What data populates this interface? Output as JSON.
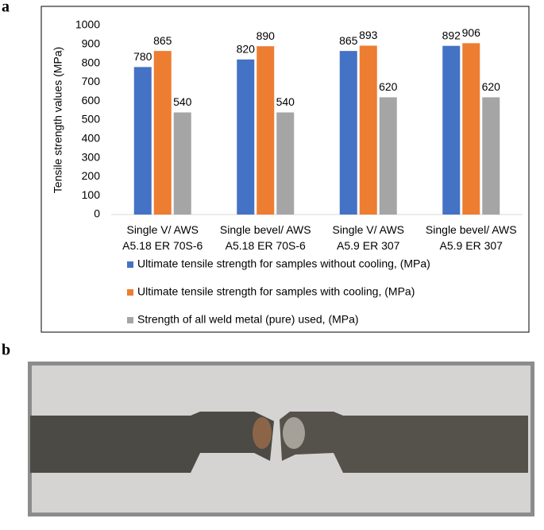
{
  "panel_labels": [
    "a",
    "b"
  ],
  "chart_data": {
    "type": "bar",
    "y_label": "Tensile strength values (MPa)",
    "categories": [
      "Single V/ AWS\nA5.18 ER 70S-6",
      "Single bevel/ AWS\nA5.18 ER 70S-6",
      "Single V/ AWS\nA5.9 ER 307",
      "Single bevel/ AWS\nA5.9 ER 307"
    ],
    "series": [
      {
        "name": "Ultimate tensile strength for samples without cooling, (MPa)",
        "color": "#4472c4",
        "values": [
          780,
          820,
          865,
          892
        ]
      },
      {
        "name": "Ultimate tensile strength for samples with cooling, (MPa)",
        "color": "#ed7d31",
        "values": [
          865,
          890,
          893,
          906
        ]
      },
      {
        "name": "Strength of all  weld metal (pure) used, (MPa)",
        "color": "#a5a5a5",
        "values": [
          540,
          540,
          620,
          620
        ]
      }
    ],
    "ylim": [
      0,
      1000
    ],
    "yticks": [
      0,
      100,
      200,
      300,
      400,
      500,
      600,
      700,
      800,
      900,
      1000
    ],
    "grid": false,
    "legend": "bottom"
  }
}
